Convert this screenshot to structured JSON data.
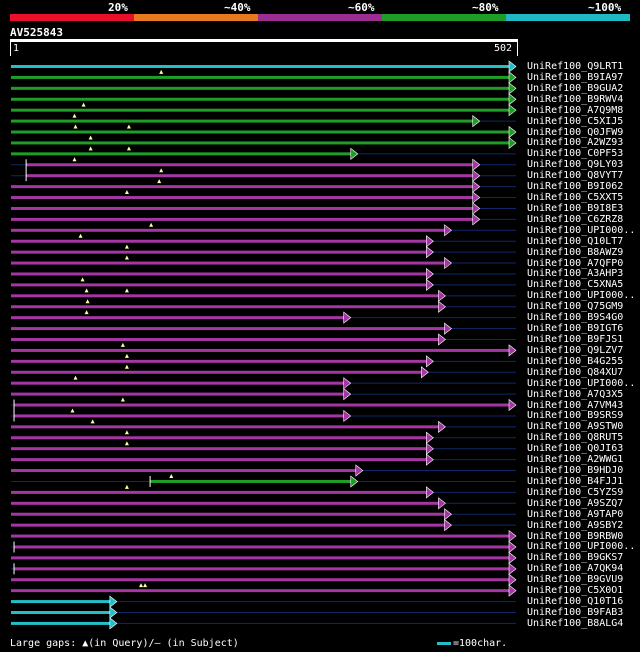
{
  "legend": {
    "items": [
      {
        "label": "20%",
        "color": "#e8102a"
      },
      {
        "label": "~40%",
        "color": "#e8791f"
      },
      {
        "label": "~60%",
        "color": "#9c2d92"
      },
      {
        "label": "~80%",
        "color": "#1e9e26"
      },
      {
        "label": "~100%",
        "color": "#20b8c4"
      }
    ]
  },
  "query": {
    "name": "AV525843",
    "start_label": "1",
    "end_label": "502",
    "length": 502
  },
  "colors": {
    "cyan": "#23bec8",
    "green": "#1e9e26",
    "purple": "#a536a3",
    "dark_line": "#10286a",
    "gap_marker": "#ffffa0"
  },
  "hits": [
    {
      "name": "UniRef100_Q9LRT1",
      "color": "cyan",
      "start": 1,
      "end": 502,
      "arrow": true,
      "gaps": []
    },
    {
      "name": "UniRef100_B9IA97",
      "color": "green",
      "start": 1,
      "end": 502,
      "arrow": true,
      "gaps": [
        150
      ]
    },
    {
      "name": "UniRef100_B9GUA2",
      "color": "green",
      "start": 1,
      "end": 502,
      "arrow": true,
      "gaps": []
    },
    {
      "name": "UniRef100_B9RWV4",
      "color": "green",
      "start": 1,
      "end": 502,
      "arrow": true,
      "gaps": []
    },
    {
      "name": "UniRef100_A7Q9M8",
      "color": "green",
      "start": 1,
      "end": 502,
      "arrow": true,
      "gaps": [
        73
      ]
    },
    {
      "name": "UniRef100_C5XIJ5",
      "color": "green",
      "start": 1,
      "end": 466,
      "arrow": true,
      "gaps": [
        64
      ]
    },
    {
      "name": "UniRef100_Q0JFW9",
      "color": "green",
      "start": 1,
      "end": 502,
      "arrow": true,
      "gaps": [
        65,
        118
      ]
    },
    {
      "name": "UniRef100_A2WZ93",
      "color": "green",
      "start": 1,
      "end": 502,
      "arrow": true,
      "gaps": [
        80
      ]
    },
    {
      "name": "UniRef100_C0PF53",
      "color": "green",
      "start": 1,
      "end": 345,
      "arrow": true,
      "gaps": [
        80,
        118
      ]
    },
    {
      "name": "UniRef100_Q9LY03",
      "color": "purple",
      "start": 16,
      "end": 466,
      "arrow": true,
      "gaps": [
        64
      ]
    },
    {
      "name": "UniRef100_Q8VYT7",
      "color": "purple",
      "start": 16,
      "end": 466,
      "arrow": true,
      "gaps": [
        150
      ]
    },
    {
      "name": "UniRef100_B9I062",
      "color": "purple",
      "start": 1,
      "end": 466,
      "arrow": true,
      "gaps": [
        148
      ]
    },
    {
      "name": "UniRef100_C5XXT5",
      "color": "purple",
      "start": 1,
      "end": 466,
      "arrow": true,
      "gaps": [
        116
      ]
    },
    {
      "name": "UniRef100_B9I8E3",
      "color": "purple",
      "start": 1,
      "end": 466,
      "arrow": true,
      "gaps": []
    },
    {
      "name": "UniRef100_C6ZRZ8",
      "color": "purple",
      "start": 1,
      "end": 466,
      "arrow": true,
      "gaps": []
    },
    {
      "name": "UniRef100_UPI000..",
      "color": "purple",
      "start": 1,
      "end": 438,
      "arrow": true,
      "gaps": [
        140
      ]
    },
    {
      "name": "UniRef100_Q10LT7",
      "color": "purple",
      "start": 1,
      "end": 420,
      "arrow": true,
      "gaps": [
        70
      ]
    },
    {
      "name": "UniRef100_B8AWZ9",
      "color": "purple",
      "start": 1,
      "end": 420,
      "arrow": true,
      "gaps": [
        116
      ]
    },
    {
      "name": "UniRef100_A7QFP0",
      "color": "purple",
      "start": 1,
      "end": 438,
      "arrow": true,
      "gaps": [
        116
      ]
    },
    {
      "name": "UniRef100_A3AHP3",
      "color": "purple",
      "start": 1,
      "end": 420,
      "arrow": true,
      "gaps": []
    },
    {
      "name": "UniRef100_C5XNA5",
      "color": "purple",
      "start": 1,
      "end": 420,
      "arrow": true,
      "gaps": [
        72
      ]
    },
    {
      "name": "UniRef100_UPI000..",
      "color": "purple",
      "start": 1,
      "end": 432,
      "arrow": true,
      "gaps": [
        76,
        116
      ]
    },
    {
      "name": "UniRef100_Q75GM9",
      "color": "purple",
      "start": 1,
      "end": 432,
      "arrow": true,
      "gaps": [
        77
      ]
    },
    {
      "name": "UniRef100_B9S4G0",
      "color": "purple",
      "start": 1,
      "end": 338,
      "arrow": true,
      "gaps": [
        76
      ]
    },
    {
      "name": "UniRef100_B9IGT6",
      "color": "purple",
      "start": 1,
      "end": 438,
      "arrow": true,
      "gaps": []
    },
    {
      "name": "UniRef100_B9FJS1",
      "color": "purple",
      "start": 1,
      "end": 432,
      "arrow": true,
      "gaps": []
    },
    {
      "name": "UniRef100_Q9LZV7",
      "color": "purple",
      "start": 1,
      "end": 502,
      "arrow": true,
      "gaps": [
        112
      ]
    },
    {
      "name": "UniRef100_B4G255",
      "color": "purple",
      "start": 1,
      "end": 420,
      "arrow": true,
      "gaps": [
        116
      ]
    },
    {
      "name": "UniRef100_Q84XU7",
      "color": "purple",
      "start": 1,
      "end": 415,
      "arrow": true,
      "gaps": [
        116
      ]
    },
    {
      "name": "UniRef100_UPI000..",
      "color": "purple",
      "start": 1,
      "end": 338,
      "arrow": true,
      "gaps": [
        65
      ]
    },
    {
      "name": "UniRef100_A7Q3X5",
      "color": "purple",
      "start": 1,
      "end": 338,
      "arrow": true,
      "gaps": []
    },
    {
      "name": "UniRef100_A7VM43",
      "color": "purple",
      "start": 4,
      "end": 502,
      "arrow": true,
      "gaps": [
        112
      ]
    },
    {
      "name": "UniRef100_B9SRS9",
      "color": "purple",
      "start": 4,
      "end": 338,
      "arrow": true,
      "gaps": [
        62
      ]
    },
    {
      "name": "UniRef100_A9STW0",
      "color": "purple",
      "start": 1,
      "end": 432,
      "arrow": true,
      "gaps": [
        82
      ]
    },
    {
      "name": "UniRef100_Q8RUT5",
      "color": "purple",
      "start": 1,
      "end": 420,
      "arrow": true,
      "gaps": [
        116
      ]
    },
    {
      "name": "UniRef100_Q0JI63",
      "color": "purple",
      "start": 1,
      "end": 420,
      "arrow": true,
      "gaps": [
        116
      ]
    },
    {
      "name": "UniRef100_A2WWG1",
      "color": "purple",
      "start": 1,
      "end": 420,
      "arrow": true,
      "gaps": []
    },
    {
      "name": "UniRef100_B9HDJ0",
      "color": "purple",
      "start": 1,
      "end": 350,
      "arrow": true,
      "gaps": []
    },
    {
      "name": "UniRef100_B4FJJ1",
      "color": "green",
      "start": 139,
      "end": 345,
      "arrow": true,
      "gaps": [
        160
      ]
    },
    {
      "name": "UniRef100_C5YZS9",
      "color": "purple",
      "start": 1,
      "end": 420,
      "arrow": true,
      "gaps": [
        116
      ]
    },
    {
      "name": "UniRef100_A9SZQ7",
      "color": "purple",
      "start": 1,
      "end": 432,
      "arrow": true,
      "gaps": []
    },
    {
      "name": "UniRef100_A9TAP0",
      "color": "purple",
      "start": 1,
      "end": 438,
      "arrow": true,
      "gaps": []
    },
    {
      "name": "UniRef100_A9SBY2",
      "color": "purple",
      "start": 1,
      "end": 438,
      "arrow": true,
      "gaps": []
    },
    {
      "name": "UniRef100_B9RBW0",
      "color": "purple",
      "start": 1,
      "end": 502,
      "arrow": true,
      "gaps": []
    },
    {
      "name": "UniRef100_UPI000..",
      "color": "purple",
      "start": 4,
      "end": 502,
      "arrow": true,
      "gaps": []
    },
    {
      "name": "UniRef100_B9GKS7",
      "color": "purple",
      "start": 1,
      "end": 502,
      "arrow": true,
      "gaps": []
    },
    {
      "name": "UniRef100_A7QK94",
      "color": "purple",
      "start": 4,
      "end": 502,
      "arrow": true,
      "gaps": []
    },
    {
      "name": "UniRef100_B9GVU9",
      "color": "purple",
      "start": 1,
      "end": 502,
      "arrow": true,
      "gaps": []
    },
    {
      "name": "UniRef100_C5X0O1",
      "color": "purple",
      "start": 1,
      "end": 502,
      "arrow": true,
      "gaps": [
        130,
        134
      ]
    },
    {
      "name": "UniRef100_Q10T16",
      "color": "cyan",
      "start": 1,
      "end": 106,
      "arrow": true,
      "gaps": []
    },
    {
      "name": "UniRef100_B9FAB3",
      "color": "cyan",
      "start": 1,
      "end": 106,
      "arrow": true,
      "gaps": []
    },
    {
      "name": "UniRef100_B8ALG4",
      "color": "cyan",
      "start": 1,
      "end": 106,
      "arrow": true,
      "gaps": []
    }
  ],
  "footer": {
    "gaps_text": "Large gaps: ▲(in Query)/– (in Subject)",
    "scale_text": "=100char."
  }
}
